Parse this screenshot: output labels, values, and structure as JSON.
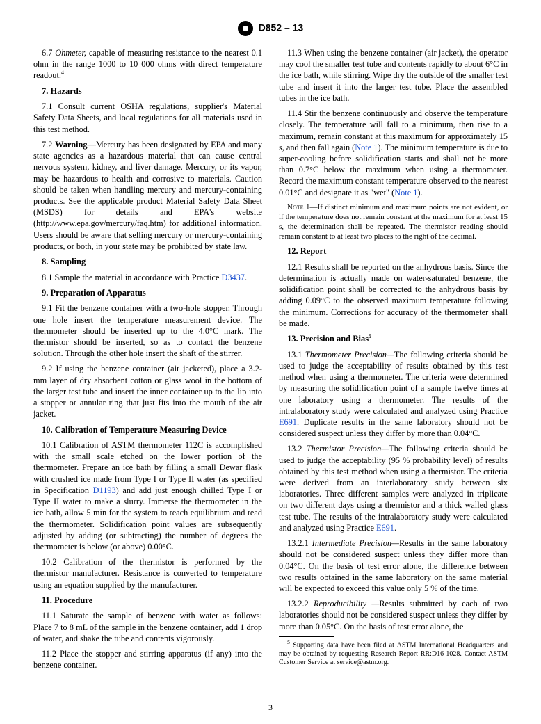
{
  "header": {
    "designation": "D852 – 13"
  },
  "page_number": "3",
  "col_left": {
    "p6_7": {
      "num": "6.7",
      "term": "Ohmeter,",
      "text": "capable of measuring resistance to the nearest 0.1 ohm in the range 1000 to 10 000 ohms with direct temperature readout.",
      "fn": "4"
    },
    "s7": {
      "title": "7.  Hazards"
    },
    "p7_1": {
      "num": "7.1",
      "text": "Consult current OSHA regulations, supplier's Material Safety Data Sheets, and local regulations for all materials used in this test method."
    },
    "p7_2": {
      "num": "7.2",
      "label": "Warning",
      "text": "—Mercury has been designated by EPA and many state agencies as a hazardous material that can cause central nervous system, kidney, and liver damage. Mercury, or its vapor, may be hazardous to health and corrosive to materials. Caution should be taken when handling mercury and mercury-containing products. See the applicable product Material Safety Data Sheet (MSDS) for details and EPA's website (http://www.epa.gov/mercury/faq.htm) for additional information. Users should be aware that selling mercury or mercury-containing products, or both, in your state may be prohibited by state law."
    },
    "s8": {
      "title": "8.  Sampling"
    },
    "p8_1": {
      "num": "8.1",
      "text": "Sample the material in accordance with Practice ",
      "link": "D3437",
      "tail": "."
    },
    "s9": {
      "title": "9.  Preparation of Apparatus"
    },
    "p9_1": {
      "num": "9.1",
      "text": "Fit the benzene container with a two-hole stopper. Through one hole insert the temperature measurement device. The thermometer should be inserted up to the 4.0°C mark. The thermistor should be inserted, so as to contact the benzene solution. Through the other hole insert the shaft of the stirrer."
    },
    "p9_2": {
      "num": "9.2",
      "text": "If using the benzene container (air jacketed), place a 3.2-mm layer of dry absorbent cotton or glass wool in the bottom of the larger test tube and insert the inner container up to the lip into a stopper or annular ring that just fits into the mouth of the air jacket."
    },
    "s10": {
      "title": "10.  Calibration of Temperature Measuring Device"
    },
    "p10_1": {
      "num": "10.1",
      "pre": "Calibration of ASTM thermometer 112C is accomplished with the small scale etched on the lower portion of the thermometer. Prepare an ice bath by filling a small Dewar flask with crushed ice made from Type I or Type II water (as specified in Specification ",
      "link": "D1193",
      "post": ") and add just enough chilled Type I or Type II water to make a slurry. Immerse the thermometer in the ice bath, allow 5 min for the system to reach equilibrium and read the thermometer. Solidification point values are subsequently adjusted by adding (or subtracting) the number of degrees the thermometer is below (or above) 0.00°C."
    },
    "p10_2": {
      "num": "10.2",
      "text": "Calibration of the thermistor is performed by the thermistor manufacturer. Resistance is converted to temperature using an equation supplied by the manufacturer."
    },
    "s11": {
      "title": "11.  Procedure"
    },
    "p11_1": {
      "num": "11.1",
      "text": "Saturate the sample of benzene with water as follows: Place 7 to 8 mL of the sample in the benzene container, add 1 drop of water, and shake the tube and contents vigorously."
    },
    "p11_2": {
      "num": "11.2",
      "text": "Place the stopper and stirring apparatus (if any) into the benzene container."
    }
  },
  "col_right": {
    "p11_3": {
      "num": "11.3",
      "text": "When using the benzene container (air jacket), the operator may cool the smaller test tube and contents rapidly to about 6°C in the ice bath, while stirring. Wipe dry the outside of the smaller test tube and insert it into the larger test tube. Place the assembled tubes in the ice bath."
    },
    "p11_4": {
      "num": "11.4",
      "pre": "Stir the benzene continuously and observe the temperature closely. The temperature will fall to a minimum, then rise to a maximum, remain constant at this maximum for approximately 15 s, and then fall again (",
      "link1": "Note 1",
      "mid": "). The minimum temperature is due to super-cooling before solidification starts and shall not be more than 0.7°C below the maximum when using a thermometer. Record the maximum constant temperature observed to the nearest 0.01°C and designate it as \"wet\" (",
      "link2": "Note 1",
      "post": ")."
    },
    "note1": {
      "label": "Note 1—",
      "text": "If distinct minimum and maximum points are not evident, or if the temperature does not remain constant at the maximum for at least 15 s, the determination shall be repeated. The thermistor reading should remain constant to at least two places to the right of the decimal."
    },
    "s12": {
      "title": "12.  Report"
    },
    "p12_1": {
      "num": "12.1",
      "text": "Results shall be reported on the anhydrous basis. Since the determination is actually made on water-saturated benzene, the solidification point shall be corrected to the anhydrous basis by adding 0.09°C to the observed maximum temperature following the minimum. Corrections for accuracy of the thermometer shall be made."
    },
    "s13": {
      "title": "13.  Precision and Bias",
      "fn": "5"
    },
    "p13_1": {
      "num": "13.1",
      "term": "Thermometer Precision—",
      "pre": "The following criteria should be used to judge the acceptability of results obtained by this test method when using a thermometer. The criteria were determined by measuring the solidification point of a sample twelve times at one laboratory using a thermometer. The results of the intralaboratory study were calculated and analyzed using Practice ",
      "link": "E691",
      "post": ". Duplicate results in the same laboratory should not be considered suspect unless they differ by more than 0.04°C."
    },
    "p13_2": {
      "num": "13.2",
      "term": "Thermistor Precision—",
      "pre": "The following criteria should be used to judge the acceptability (95 % probability level) of results obtained by this test method when using a thermistor. The criteria were derived from an interlaboratory study between six laboratories. Three different samples were analyzed in triplicate on two different days using a thermistor and a thick walled glass test tube. The results of the intralaboratory study were calculated and analyzed using Practice ",
      "link": "E691",
      "post": "."
    },
    "p13_2_1": {
      "num": "13.2.1",
      "term": "Intermediate Precision—",
      "text": "Results in the same laboratory should not be considered suspect unless they differ more than 0.04°C. On the basis of test error alone, the difference between two results obtained in the same laboratory on the same material will be expected to exceed this value only 5 % of the time."
    },
    "p13_2_2": {
      "num": "13.2.2",
      "term": "Reproducibility —",
      "text": "Results submitted by each of two laboratories should not be considered suspect unless they differ by more than 0.05°C. On the basis of test error alone, the"
    },
    "fn5": {
      "sup": "5",
      "text": "Supporting data have been filed at ASTM International Headquarters and may be obtained by requesting Research Report RR:D16-1028. Contact ASTM Customer Service at service@astm.org."
    }
  }
}
